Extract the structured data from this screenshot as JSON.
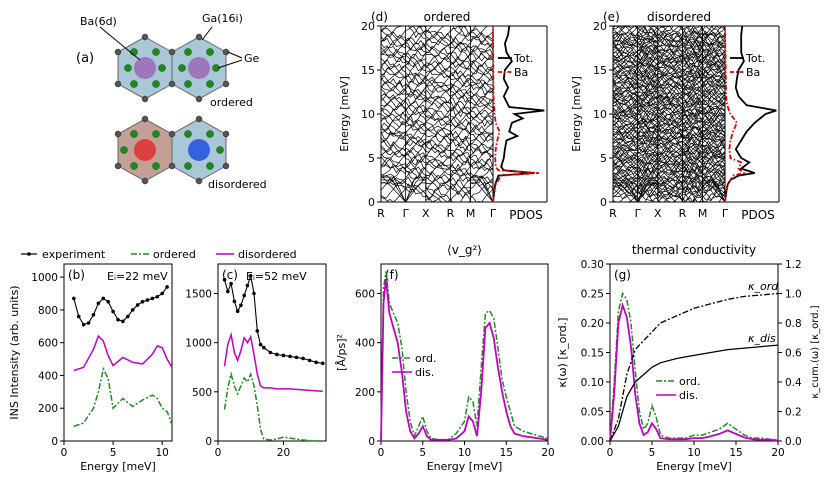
{
  "structure": {
    "label": "(a)",
    "annotations": [
      "Ba(6d)",
      "Ga(16i)",
      "Ge"
    ],
    "ordered_label": "ordered",
    "disordered_label": "disordered"
  },
  "legend_top": {
    "experiment": "experiment",
    "ordered": "ordered",
    "disordered": "disordered"
  },
  "colors": {
    "experiment": "#000000",
    "ordered": "#228B22",
    "disordered": "#C000C0",
    "ba": "#E00000"
  },
  "chart_data": [
    {
      "id": "d",
      "type": "line",
      "label": "(d)",
      "title": "ordered",
      "ylabel": "Energy [meV]",
      "ylim": [
        0,
        20
      ],
      "yticks": [
        0,
        5,
        10,
        15,
        20
      ],
      "kpath": [
        "R",
        "Γ",
        "X",
        "R",
        "M",
        "Γ"
      ],
      "pdos_label": "PDOS",
      "legend": [
        "Tot.",
        "Ba"
      ],
      "bands": "dense phonon dispersion (approx. 60 branches, 0–20 meV)",
      "pdos_tot": [
        [
          0,
          0
        ],
        [
          1,
          0.02
        ],
        [
          2,
          0.04
        ],
        [
          3,
          0.1
        ],
        [
          3.3,
          0.75
        ],
        [
          3.6,
          0.2
        ],
        [
          4,
          0.15
        ],
        [
          5,
          0.2
        ],
        [
          6,
          0.22
        ],
        [
          7,
          0.25
        ],
        [
          7.5,
          0.45
        ],
        [
          8,
          0.3
        ],
        [
          9,
          0.35
        ],
        [
          9.5,
          0.55
        ],
        [
          10,
          0.4
        ],
        [
          10.4,
          0.95
        ],
        [
          10.8,
          0.3
        ],
        [
          12,
          0.2
        ],
        [
          13,
          0.28
        ],
        [
          14,
          0.2
        ],
        [
          15,
          0.22
        ],
        [
          16,
          0.35
        ],
        [
          17,
          0.25
        ],
        [
          18,
          0.22
        ],
        [
          19,
          0.28
        ],
        [
          20,
          0.3
        ]
      ],
      "pdos_ba": [
        [
          0,
          0
        ],
        [
          1,
          0.02
        ],
        [
          2,
          0.05
        ],
        [
          3,
          0.15
        ],
        [
          3.3,
          0.85
        ],
        [
          3.6,
          0.1
        ],
        [
          4,
          0.05
        ],
        [
          5,
          0.04
        ],
        [
          6,
          0.05
        ],
        [
          7,
          0.08
        ],
        [
          8,
          0.12
        ],
        [
          9,
          0.05
        ],
        [
          10,
          0.03
        ],
        [
          11,
          0.02
        ],
        [
          12,
          0.01
        ],
        [
          20,
          0
        ]
      ]
    },
    {
      "id": "e",
      "type": "line",
      "label": "(e)",
      "title": "disordered",
      "ylabel": "Energy [meV]",
      "ylim": [
        0,
        20
      ],
      "yticks": [
        0,
        5,
        10,
        15,
        20
      ],
      "kpath": [
        "R",
        "Γ",
        "X",
        "R",
        "M",
        "Γ"
      ],
      "pdos_label": "PDOS",
      "legend": [
        "Tot.",
        "Ba"
      ],
      "bands": "dense phonon dispersion (approx. 120 branches, 0–20 meV)",
      "pdos_tot": [
        [
          0,
          0
        ],
        [
          1,
          0.02
        ],
        [
          2,
          0.05
        ],
        [
          2.5,
          0.1
        ],
        [
          3,
          0.25
        ],
        [
          3.3,
          0.55
        ],
        [
          3.8,
          0.3
        ],
        [
          4.5,
          0.45
        ],
        [
          5,
          0.3
        ],
        [
          6,
          0.2
        ],
        [
          7,
          0.3
        ],
        [
          8,
          0.4
        ],
        [
          9,
          0.55
        ],
        [
          10,
          0.75
        ],
        [
          10.4,
          0.95
        ],
        [
          11,
          0.4
        ],
        [
          12,
          0.25
        ],
        [
          13,
          0.2
        ],
        [
          14,
          0.22
        ],
        [
          15,
          0.25
        ],
        [
          16,
          0.35
        ],
        [
          17,
          0.3
        ],
        [
          18,
          0.3
        ],
        [
          19,
          0.3
        ],
        [
          20,
          0.32
        ]
      ],
      "pdos_ba": [
        [
          0,
          0
        ],
        [
          1,
          0.02
        ],
        [
          2,
          0.05
        ],
        [
          3,
          0.15
        ],
        [
          3.3,
          0.35
        ],
        [
          3.8,
          0.25
        ],
        [
          4.5,
          0.3
        ],
        [
          5,
          0.1
        ],
        [
          6,
          0.08
        ],
        [
          7,
          0.1
        ],
        [
          8,
          0.15
        ],
        [
          9,
          0.22
        ],
        [
          10,
          0.1
        ],
        [
          11,
          0.04
        ],
        [
          12,
          0.02
        ],
        [
          20,
          0
        ]
      ]
    },
    {
      "id": "b",
      "type": "line",
      "label": "(b)",
      "annotation": "Eᵢ=22 meV",
      "xlabel": "Energy [meV]",
      "ylabel": "INS Intensity (arb. units)",
      "xlim": [
        0,
        11
      ],
      "ylim": [
        0,
        1080
      ],
      "xticks": [
        0,
        5,
        10
      ],
      "yticks": [
        0,
        200,
        400,
        600,
        800,
        1000
      ],
      "series": [
        {
          "name": "experiment",
          "x": [
            1,
            1.5,
            2,
            2.5,
            3,
            3.5,
            4,
            4.5,
            5,
            5.5,
            6,
            6.5,
            7,
            7.5,
            8,
            8.5,
            9,
            9.5,
            10,
            10.5
          ],
          "y": [
            870,
            760,
            710,
            720,
            770,
            840,
            870,
            850,
            790,
            740,
            730,
            760,
            800,
            830,
            850,
            860,
            870,
            880,
            900,
            940
          ]
        },
        {
          "name": "ordered",
          "x": [
            1,
            2,
            3,
            3.5,
            4,
            4.5,
            5,
            6,
            7,
            8,
            9,
            9.5,
            10,
            10.5,
            11
          ],
          "y": [
            90,
            110,
            200,
            300,
            440,
            380,
            200,
            260,
            210,
            250,
            280,
            260,
            200,
            180,
            100
          ]
        },
        {
          "name": "disordered",
          "x": [
            1,
            2,
            3,
            3.5,
            4,
            4.5,
            5,
            6,
            7,
            8,
            9,
            9.5,
            10,
            10.5,
            11
          ],
          "y": [
            430,
            450,
            560,
            640,
            610,
            520,
            460,
            510,
            480,
            470,
            530,
            580,
            570,
            500,
            450
          ]
        }
      ]
    },
    {
      "id": "c",
      "type": "line",
      "label": "(c)",
      "annotation": "Eᵢ=52 meV",
      "xlabel": "",
      "xlim": [
        0,
        33
      ],
      "ylim": [
        0,
        1800
      ],
      "xticks": [
        0,
        20
      ],
      "yticks": [
        0,
        500,
        1000,
        1500
      ],
      "series": [
        {
          "name": "experiment",
          "x": [
            2,
            3,
            4,
            5,
            6,
            7,
            8,
            9,
            10,
            11,
            12,
            13,
            14,
            16,
            18,
            20,
            22,
            24,
            26,
            28,
            30,
            32
          ],
          "y": [
            1640,
            1520,
            1600,
            1420,
            1320,
            1380,
            1480,
            1580,
            1680,
            1500,
            1120,
            980,
            950,
            900,
            880,
            870,
            860,
            850,
            840,
            820,
            800,
            790
          ]
        },
        {
          "name": "ordered",
          "x": [
            2,
            3,
            4,
            5,
            6,
            7,
            8,
            9,
            10,
            11,
            12,
            13,
            14,
            16,
            18,
            20,
            22,
            24,
            26,
            28,
            30
          ],
          "y": [
            320,
            540,
            680,
            560,
            480,
            560,
            640,
            600,
            680,
            560,
            360,
            120,
            20,
            10,
            20,
            40,
            30,
            20,
            10,
            5,
            0
          ]
        },
        {
          "name": "disordered",
          "x": [
            2,
            3,
            4,
            5,
            6,
            7,
            8,
            9,
            10,
            11,
            12,
            13,
            14,
            16,
            18,
            20,
            22,
            24,
            26,
            28,
            30,
            32
          ],
          "y": [
            760,
            980,
            1080,
            900,
            820,
            920,
            1050,
            1000,
            1060,
            880,
            680,
            560,
            540,
            540,
            530,
            530,
            530,
            525,
            520,
            515,
            510,
            505
          ]
        }
      ]
    },
    {
      "id": "f",
      "type": "line",
      "label": "(f)",
      "title": "⟨v_g²⟩",
      "xlabel": "Energy [meV]",
      "ylabel": "[Å/ps]²",
      "xlim": [
        0,
        20
      ],
      "ylim": [
        0,
        720
      ],
      "xticks": [
        0,
        5,
        10,
        15,
        20
      ],
      "yticks": [
        0,
        200,
        400,
        600
      ],
      "legend": [
        "ord.",
        "dis."
      ],
      "series": [
        {
          "name": "ord.",
          "x": [
            0,
            0.3,
            0.6,
            1,
            1.5,
            2,
            2.5,
            3,
            3.5,
            4,
            4.5,
            5,
            5.5,
            6,
            7,
            8,
            9,
            10,
            10.5,
            11,
            11.5,
            12,
            12.5,
            13,
            13.5,
            14,
            14.5,
            15,
            15.5,
            16,
            17,
            18,
            19,
            20
          ],
          "y": [
            0,
            620,
            690,
            560,
            520,
            480,
            380,
            200,
            80,
            20,
            60,
            100,
            40,
            10,
            5,
            5,
            30,
            80,
            180,
            160,
            60,
            300,
            520,
            530,
            500,
            380,
            250,
            180,
            120,
            60,
            40,
            30,
            20,
            10
          ]
        },
        {
          "name": "dis.",
          "x": [
            0,
            0.3,
            0.6,
            1,
            1.5,
            2,
            2.5,
            3,
            3.5,
            4,
            4.5,
            5,
            5.5,
            6,
            7,
            8,
            9,
            10,
            10.5,
            11,
            11.5,
            12,
            12.5,
            13,
            13.5,
            14,
            14.5,
            15,
            15.5,
            16,
            17,
            18,
            19,
            20
          ],
          "y": [
            0,
            560,
            660,
            520,
            460,
            400,
            280,
            120,
            40,
            10,
            30,
            60,
            20,
            5,
            5,
            5,
            10,
            40,
            100,
            80,
            20,
            200,
            460,
            480,
            420,
            300,
            200,
            120,
            60,
            30,
            20,
            15,
            10,
            5
          ]
        }
      ]
    },
    {
      "id": "g",
      "type": "line",
      "label": "(g)",
      "title": "thermal conductivity",
      "xlabel": "Energy [meV]",
      "ylabel": "κ(ω) [κ_ord.]",
      "ylabel_right": "κ_cum.(ω) [κ_ord.]",
      "xlim": [
        0,
        20
      ],
      "ylim": [
        0,
        0.3
      ],
      "ylim_right": [
        0,
        1.2
      ],
      "xticks": [
        0,
        5,
        10,
        15,
        20
      ],
      "yticks": [
        0.0,
        0.05,
        0.1,
        0.15,
        0.2,
        0.25,
        0.3
      ],
      "yticks_right": [
        0.0,
        0.2,
        0.4,
        0.6,
        0.8,
        1.0,
        1.2
      ],
      "legend": [
        "ord.",
        "dis."
      ],
      "curve_labels": [
        "κ_ord",
        "κ_dis"
      ],
      "series": [
        {
          "name": "ord.",
          "x": [
            0,
            0.5,
            1,
            1.5,
            2,
            2.5,
            3,
            3.5,
            4,
            4.5,
            5,
            5.5,
            6,
            7,
            8,
            9,
            10,
            11,
            12,
            13,
            14,
            15,
            16,
            17,
            18,
            19,
            20
          ],
          "y": [
            0,
            0.1,
            0.22,
            0.25,
            0.24,
            0.2,
            0.12,
            0.05,
            0.02,
            0.03,
            0.06,
            0.04,
            0.01,
            0.005,
            0.005,
            0.005,
            0.01,
            0.01,
            0.015,
            0.02,
            0.03,
            0.02,
            0.01,
            0.005,
            0.005,
            0.003,
            0.002
          ]
        },
        {
          "name": "dis.",
          "x": [
            0,
            0.5,
            1,
            1.5,
            2,
            2.5,
            3,
            3.5,
            4,
            4.5,
            5,
            5.5,
            6,
            7,
            8,
            9,
            10,
            11,
            12,
            13,
            14,
            15,
            16,
            17,
            18,
            19,
            20
          ],
          "y": [
            0,
            0.08,
            0.2,
            0.23,
            0.21,
            0.16,
            0.08,
            0.03,
            0.01,
            0.015,
            0.03,
            0.02,
            0.005,
            0.003,
            0.003,
            0.003,
            0.005,
            0.005,
            0.008,
            0.012,
            0.018,
            0.012,
            0.006,
            0.003,
            0.002,
            0.002,
            0.001
          ]
        },
        {
          "name": "κ_ord (cumulative)",
          "axis": "right",
          "x": [
            0,
            1,
            2,
            3,
            4,
            5,
            6,
            8,
            10,
            12,
            14,
            16,
            18,
            20
          ],
          "y": [
            0,
            0.15,
            0.45,
            0.62,
            0.68,
            0.74,
            0.8,
            0.85,
            0.9,
            0.93,
            0.96,
            0.98,
            0.99,
            1.0
          ]
        },
        {
          "name": "κ_dis (cumulative)",
          "axis": "right",
          "x": [
            0,
            1,
            2,
            3,
            4,
            5,
            6,
            8,
            10,
            12,
            14,
            16,
            18,
            20
          ],
          "y": [
            0,
            0.1,
            0.3,
            0.4,
            0.45,
            0.5,
            0.53,
            0.56,
            0.58,
            0.6,
            0.62,
            0.63,
            0.64,
            0.65
          ]
        }
      ]
    }
  ]
}
